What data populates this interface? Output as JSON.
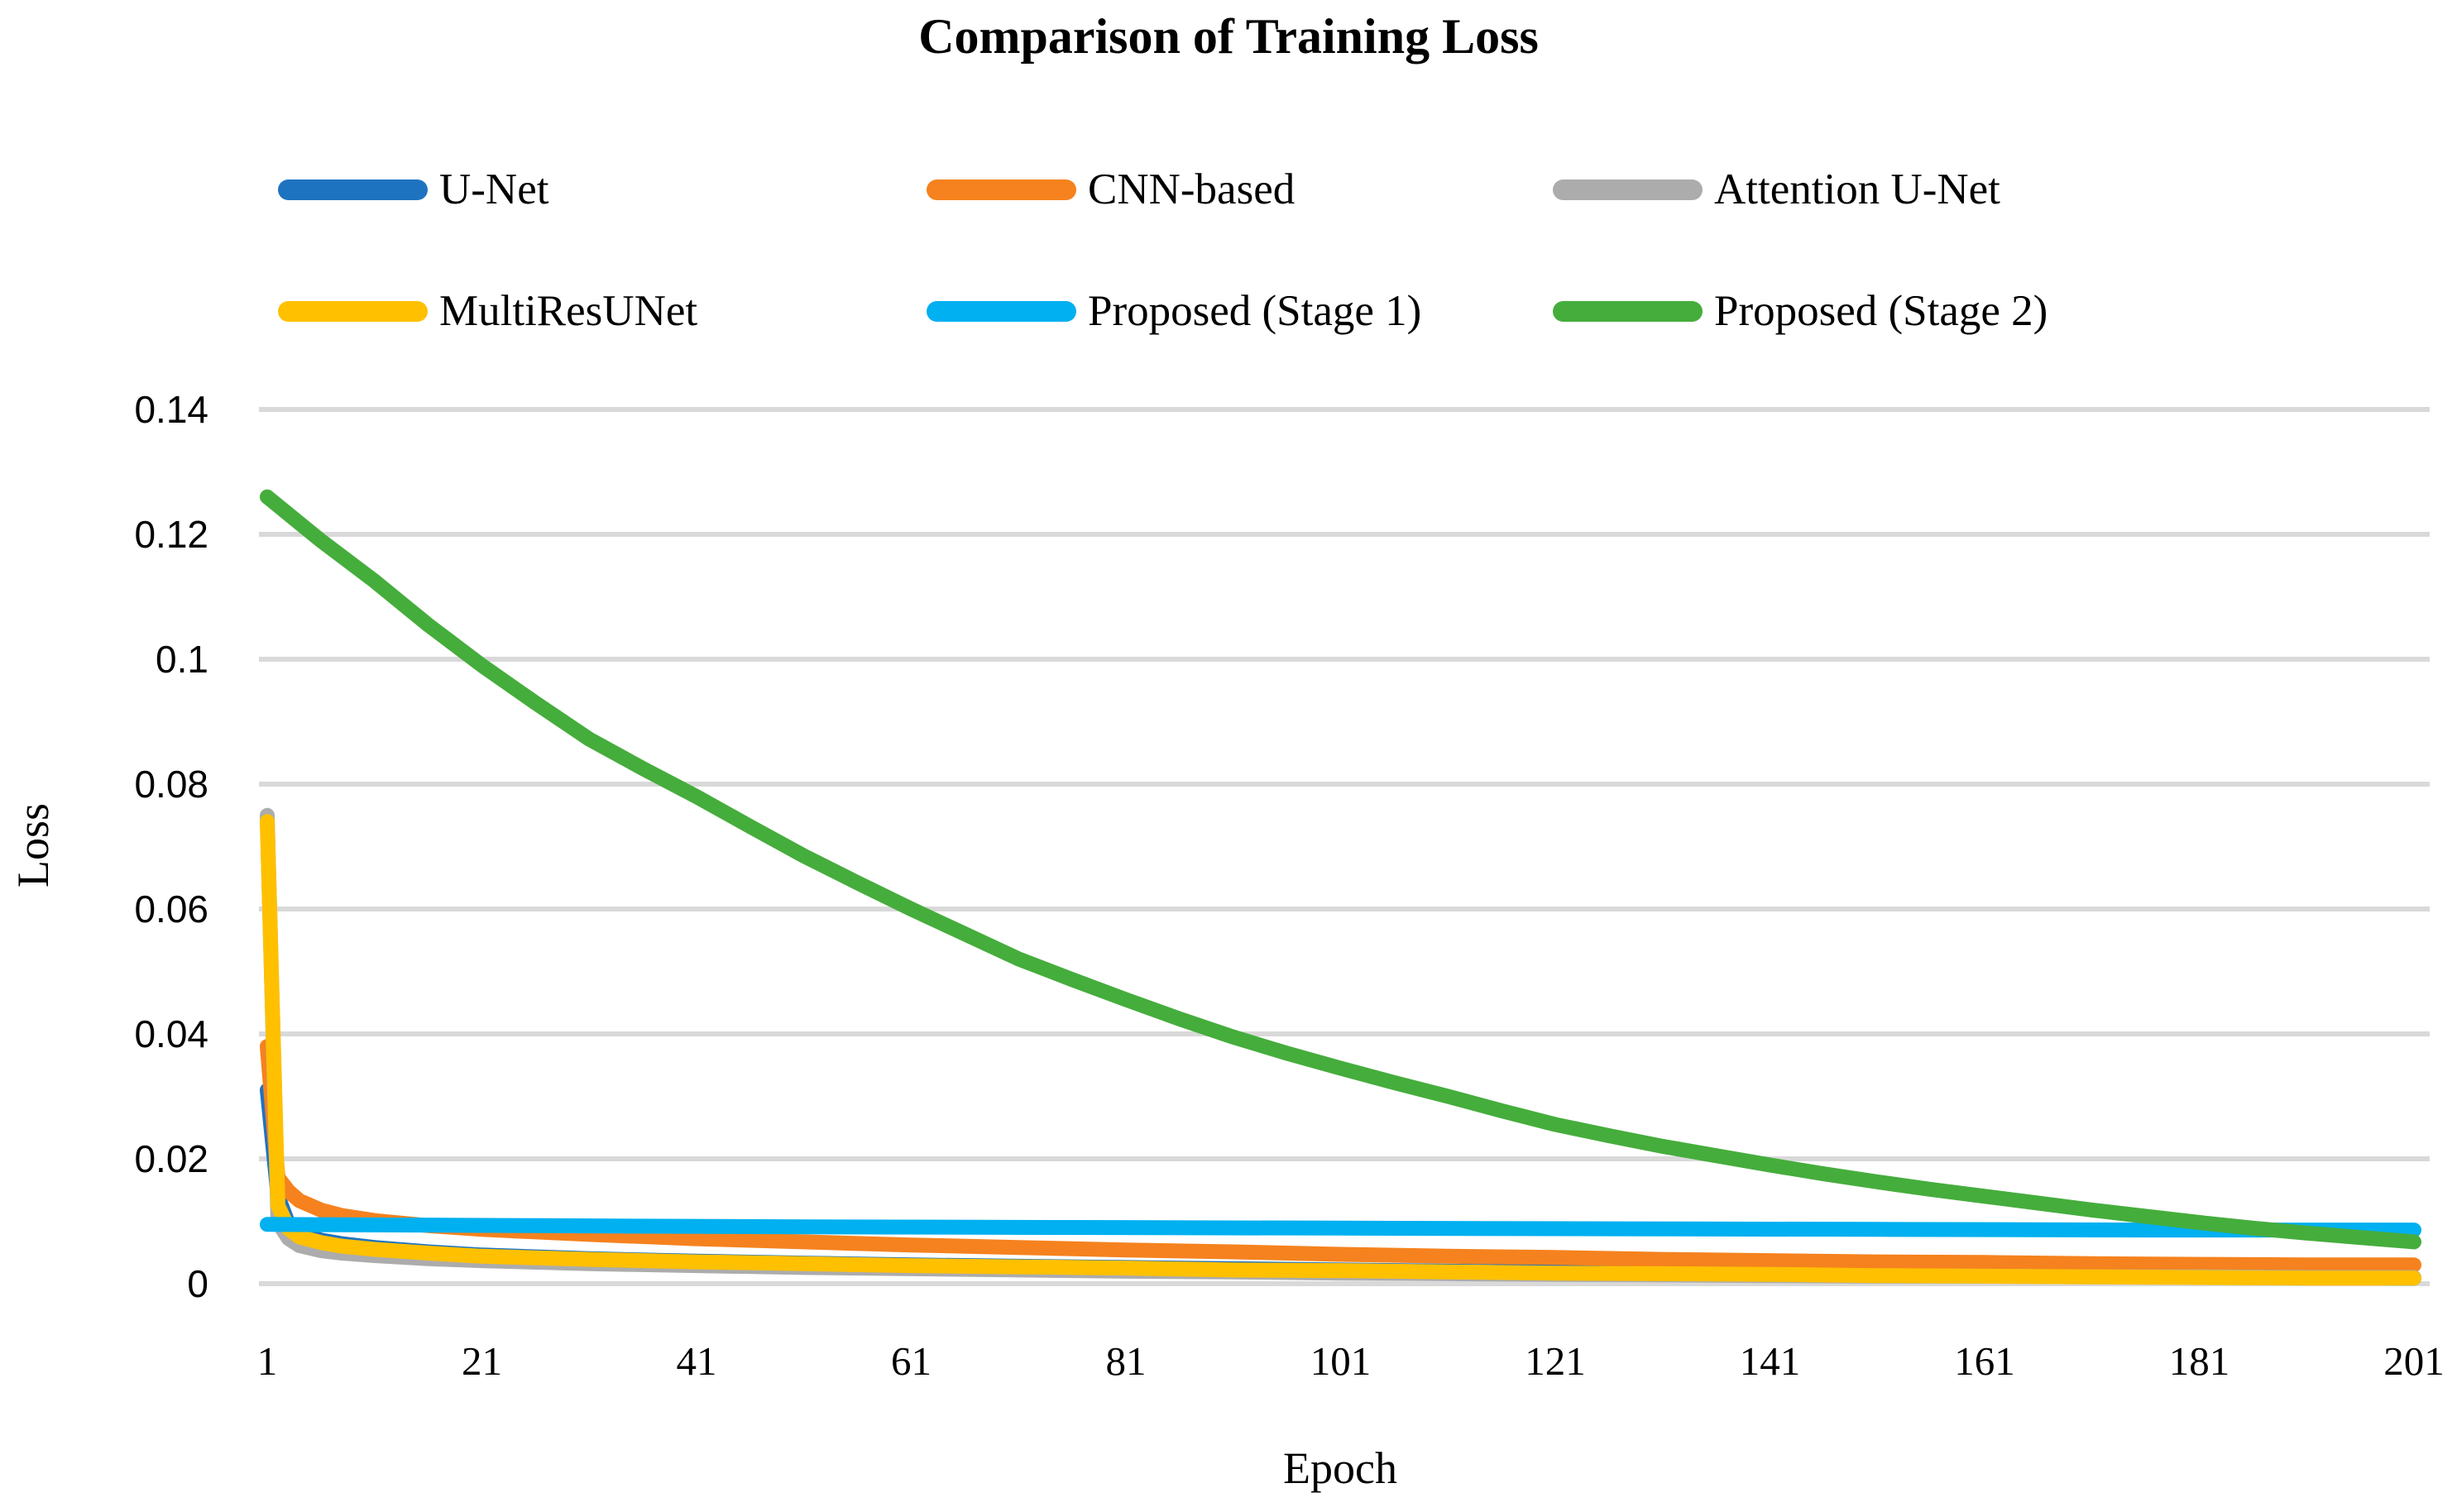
{
  "title": "Comparison of Training Loss",
  "axes": {
    "y_title": "Loss",
    "x_title": "Epoch"
  },
  "chart_data": {
    "type": "line",
    "title": "Comparison of Training Loss",
    "xlabel": "Epoch",
    "ylabel": "Loss",
    "xlim": [
      1,
      201
    ],
    "ylim": [
      0,
      0.14
    ],
    "grid": true,
    "legend_position": "top",
    "gridline_color": "#D9D9D9",
    "x_ticks": [
      {
        "value": 1,
        "label": "1"
      },
      {
        "value": 21,
        "label": "21"
      },
      {
        "value": 41,
        "label": "41"
      },
      {
        "value": 61,
        "label": "61"
      },
      {
        "value": 81,
        "label": "81"
      },
      {
        "value": 101,
        "label": "101"
      },
      {
        "value": 121,
        "label": "121"
      },
      {
        "value": 141,
        "label": "141"
      },
      {
        "value": 161,
        "label": "161"
      },
      {
        "value": 181,
        "label": "181"
      },
      {
        "value": 201,
        "label": "201"
      }
    ],
    "y_ticks": [
      {
        "value": 0.14,
        "label": "0.14"
      },
      {
        "value": 0.12,
        "label": "0.12"
      },
      {
        "value": 0.1,
        "label": "0.1"
      },
      {
        "value": 0.08,
        "label": "0.08"
      },
      {
        "value": 0.06,
        "label": "0.06"
      },
      {
        "value": 0.04,
        "label": "0.04"
      },
      {
        "value": 0.02,
        "label": "0.02"
      },
      {
        "value": 0,
        "label": "0"
      }
    ],
    "series": [
      {
        "name": "U-Net",
        "color": "#1E73C0",
        "points": [
          [
            1,
            0.031
          ],
          [
            2,
            0.014
          ],
          [
            3,
            0.0095
          ],
          [
            4,
            0.008
          ],
          [
            6,
            0.007
          ],
          [
            8,
            0.0064
          ],
          [
            11,
            0.0058
          ],
          [
            16,
            0.0051
          ],
          [
            21,
            0.0046
          ],
          [
            31,
            0.004
          ],
          [
            41,
            0.0036
          ],
          [
            51,
            0.0033
          ],
          [
            61,
            0.003
          ],
          [
            71,
            0.0028
          ],
          [
            81,
            0.0026
          ],
          [
            91,
            0.0024
          ],
          [
            101,
            0.0022
          ],
          [
            111,
            0.002
          ],
          [
            121,
            0.0019
          ],
          [
            131,
            0.0017
          ],
          [
            141,
            0.0016
          ],
          [
            151,
            0.0015
          ],
          [
            161,
            0.0013
          ],
          [
            171,
            0.0012
          ],
          [
            181,
            0.0011
          ],
          [
            191,
            0.001
          ],
          [
            201,
            0.0009
          ]
        ]
      },
      {
        "name": "CNN-based",
        "color": "#F5821E",
        "points": [
          [
            1,
            0.038
          ],
          [
            2,
            0.017
          ],
          [
            3,
            0.0148
          ],
          [
            4,
            0.0133
          ],
          [
            6,
            0.0118
          ],
          [
            8,
            0.0109
          ],
          [
            11,
            0.0101
          ],
          [
            16,
            0.0093
          ],
          [
            21,
            0.0087
          ],
          [
            31,
            0.0079
          ],
          [
            41,
            0.0072
          ],
          [
            51,
            0.0067
          ],
          [
            61,
            0.0062
          ],
          [
            71,
            0.0058
          ],
          [
            81,
            0.0054
          ],
          [
            91,
            0.0051
          ],
          [
            101,
            0.0047
          ],
          [
            111,
            0.0044
          ],
          [
            121,
            0.0042
          ],
          [
            131,
            0.0039
          ],
          [
            141,
            0.0037
          ],
          [
            151,
            0.0035
          ],
          [
            161,
            0.0034
          ],
          [
            171,
            0.0032
          ],
          [
            181,
            0.0031
          ],
          [
            191,
            0.003
          ],
          [
            201,
            0.003
          ]
        ]
      },
      {
        "name": "Attention U-Net",
        "color": "#ACACAC",
        "points": [
          [
            1,
            0.075
          ],
          [
            2,
            0.0098
          ],
          [
            3,
            0.0072
          ],
          [
            4,
            0.0061
          ],
          [
            6,
            0.0053
          ],
          [
            8,
            0.0049
          ],
          [
            11,
            0.0045
          ],
          [
            16,
            0.004
          ],
          [
            21,
            0.0037
          ],
          [
            31,
            0.0032
          ],
          [
            41,
            0.0029
          ],
          [
            51,
            0.0026
          ],
          [
            61,
            0.0024
          ],
          [
            71,
            0.0022
          ],
          [
            81,
            0.002
          ],
          [
            91,
            0.0019
          ],
          [
            101,
            0.0017
          ],
          [
            111,
            0.0016
          ],
          [
            121,
            0.0015
          ],
          [
            131,
            0.0014
          ],
          [
            141,
            0.0013
          ],
          [
            151,
            0.0012
          ],
          [
            161,
            0.0012
          ],
          [
            171,
            0.0011
          ],
          [
            181,
            0.0011
          ],
          [
            191,
            0.001
          ],
          [
            201,
            0.001
          ]
        ]
      },
      {
        "name": "MultiResUNet",
        "color": "#FFC000",
        "points": [
          [
            1,
            0.074
          ],
          [
            2,
            0.0125
          ],
          [
            3,
            0.0088
          ],
          [
            4,
            0.0075
          ],
          [
            6,
            0.0066
          ],
          [
            8,
            0.006
          ],
          [
            11,
            0.0055
          ],
          [
            16,
            0.0049
          ],
          [
            21,
            0.0044
          ],
          [
            31,
            0.0039
          ],
          [
            41,
            0.0035
          ],
          [
            51,
            0.0032
          ],
          [
            61,
            0.0029
          ],
          [
            71,
            0.0027
          ],
          [
            81,
            0.0025
          ],
          [
            91,
            0.0022
          ],
          [
            101,
            0.0021
          ],
          [
            111,
            0.0019
          ],
          [
            121,
            0.0017
          ],
          [
            131,
            0.0016
          ],
          [
            141,
            0.0015
          ],
          [
            151,
            0.0013
          ],
          [
            161,
            0.0012
          ],
          [
            171,
            0.0011
          ],
          [
            181,
            0.001
          ],
          [
            191,
            0.0009
          ],
          [
            201,
            0.0009
          ]
        ]
      },
      {
        "name": "Proposed (Stage 1)",
        "color": "#00B0F0",
        "points": [
          [
            1,
            0.0095
          ],
          [
            26,
            0.0093
          ],
          [
            51,
            0.0091
          ],
          [
            76,
            0.009
          ],
          [
            101,
            0.0089
          ],
          [
            126,
            0.0088
          ],
          [
            151,
            0.0087
          ],
          [
            176,
            0.0086
          ],
          [
            201,
            0.0086
          ]
        ]
      },
      {
        "name": "Proposed (Stage 2)",
        "color": "#45AD3C",
        "points": [
          [
            1,
            0.126
          ],
          [
            6,
            0.119
          ],
          [
            11,
            0.1125
          ],
          [
            16,
            0.1055
          ],
          [
            21,
            0.099
          ],
          [
            26,
            0.093
          ],
          [
            31,
            0.0872
          ],
          [
            36,
            0.0825
          ],
          [
            41,
            0.078
          ],
          [
            46,
            0.0732
          ],
          [
            51,
            0.0685
          ],
          [
            56,
            0.0642
          ],
          [
            61,
            0.06
          ],
          [
            66,
            0.056
          ],
          [
            71,
            0.052
          ],
          [
            76,
            0.0487
          ],
          [
            81,
            0.0455
          ],
          [
            86,
            0.0424
          ],
          [
            91,
            0.0395
          ],
          [
            96,
            0.0369
          ],
          [
            101,
            0.0345
          ],
          [
            106,
            0.0322
          ],
          [
            111,
            0.03
          ],
          [
            116,
            0.0277
          ],
          [
            121,
            0.0255
          ],
          [
            126,
            0.0237
          ],
          [
            131,
            0.022
          ],
          [
            136,
            0.0205
          ],
          [
            141,
            0.019
          ],
          [
            146,
            0.0176
          ],
          [
            151,
            0.0163
          ],
          [
            156,
            0.0151
          ],
          [
            161,
            0.014
          ],
          [
            166,
            0.0129
          ],
          [
            171,
            0.0118
          ],
          [
            176,
            0.0108
          ],
          [
            181,
            0.0098
          ],
          [
            186,
            0.0089
          ],
          [
            191,
            0.0081
          ],
          [
            196,
            0.0074
          ],
          [
            201,
            0.0067
          ]
        ]
      }
    ]
  }
}
